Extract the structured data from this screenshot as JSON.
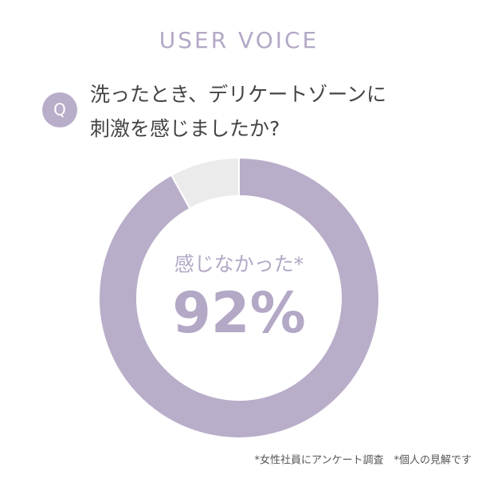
{
  "chart_data": {
    "type": "pie",
    "title": "USER VOICE",
    "question_badge": "Q",
    "question": [
      "洗ったとき、デリケートゾーンに",
      "刺激を感じましたか?"
    ],
    "categories": [
      "感じなかった*",
      null
    ],
    "values": [
      92,
      8
    ],
    "value_labels": [
      "92%",
      null
    ],
    "colors": [
      "#b9aec9",
      "#ebebeb"
    ],
    "footnote": "*女性社員にアンケート調査　*個人の見解です"
  }
}
